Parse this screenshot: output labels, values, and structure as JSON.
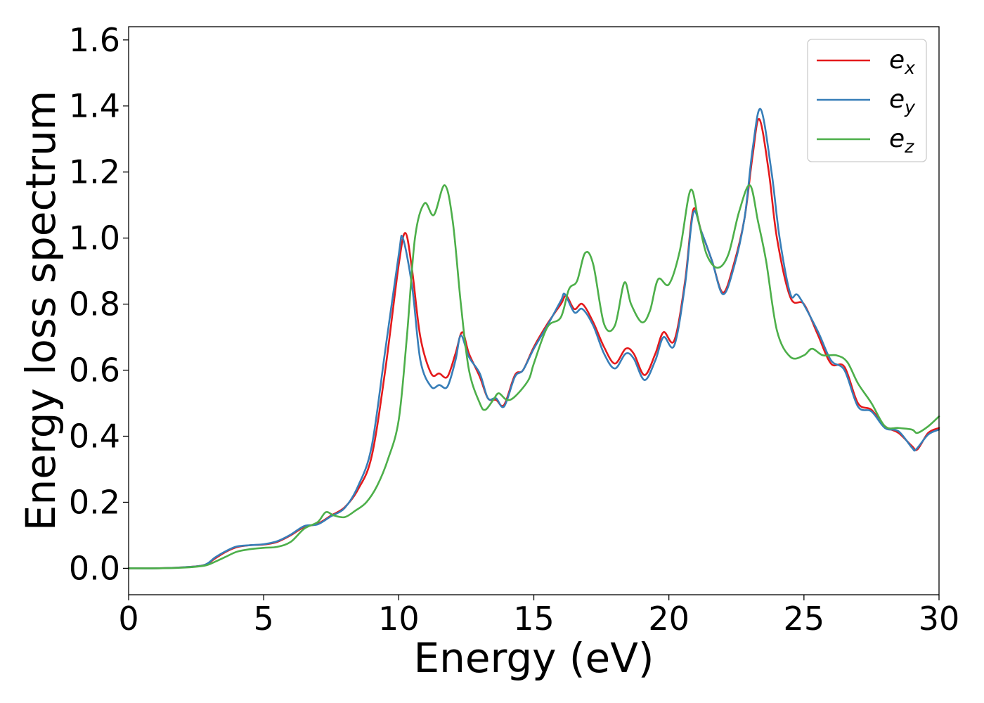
{
  "chart_data": {
    "type": "line",
    "title": "",
    "xlabel": "Energy (eV)",
    "ylabel": "Energy loss spectrum",
    "xlim": [
      0,
      30
    ],
    "ylim": [
      -0.08,
      1.64
    ],
    "xticks": [
      0,
      5,
      10,
      15,
      20,
      25,
      30
    ],
    "yticks": [
      0.0,
      0.2,
      0.4,
      0.6,
      0.8,
      1.0,
      1.2,
      1.4,
      1.6
    ],
    "grid": false,
    "legend": "top-right",
    "series": [
      {
        "name": "e_x",
        "legend_base": "e",
        "legend_sub": "x",
        "color": "#e41a1c",
        "points": [
          [
            0,
            0.0
          ],
          [
            1,
            0.0
          ],
          [
            2,
            0.003
          ],
          [
            2.8,
            0.01
          ],
          [
            3.2,
            0.03
          ],
          [
            3.6,
            0.05
          ],
          [
            4,
            0.064
          ],
          [
            4.5,
            0.07
          ],
          [
            5,
            0.072
          ],
          [
            5.5,
            0.08
          ],
          [
            6,
            0.1
          ],
          [
            6.5,
            0.125
          ],
          [
            7,
            0.135
          ],
          [
            7.5,
            0.16
          ],
          [
            8,
            0.185
          ],
          [
            8.5,
            0.24
          ],
          [
            9,
            0.34
          ],
          [
            9.5,
            0.6
          ],
          [
            10,
            0.92
          ],
          [
            10.25,
            1.015
          ],
          [
            10.5,
            0.9
          ],
          [
            10.8,
            0.7
          ],
          [
            11.2,
            0.59
          ],
          [
            11.5,
            0.59
          ],
          [
            11.8,
            0.58
          ],
          [
            12.1,
            0.65
          ],
          [
            12.35,
            0.715
          ],
          [
            12.6,
            0.65
          ],
          [
            13,
            0.58
          ],
          [
            13.3,
            0.515
          ],
          [
            13.6,
            0.51
          ],
          [
            13.9,
            0.495
          ],
          [
            14.3,
            0.585
          ],
          [
            14.6,
            0.6
          ],
          [
            15,
            0.67
          ],
          [
            15.5,
            0.74
          ],
          [
            16,
            0.8
          ],
          [
            16.2,
            0.825
          ],
          [
            16.5,
            0.785
          ],
          [
            16.8,
            0.8
          ],
          [
            17.2,
            0.745
          ],
          [
            17.6,
            0.67
          ],
          [
            18,
            0.62
          ],
          [
            18.4,
            0.665
          ],
          [
            18.7,
            0.65
          ],
          [
            19.1,
            0.585
          ],
          [
            19.5,
            0.65
          ],
          [
            19.8,
            0.715
          ],
          [
            20.2,
            0.69
          ],
          [
            20.6,
            0.87
          ],
          [
            20.9,
            1.085
          ],
          [
            21.2,
            1.02
          ],
          [
            21.6,
            0.93
          ],
          [
            22,
            0.835
          ],
          [
            22.4,
            0.92
          ],
          [
            22.8,
            1.06
          ],
          [
            23.1,
            1.25
          ],
          [
            23.35,
            1.36
          ],
          [
            23.7,
            1.2
          ],
          [
            24,
            1.0
          ],
          [
            24.5,
            0.82
          ],
          [
            25,
            0.8
          ],
          [
            25.5,
            0.71
          ],
          [
            26,
            0.62
          ],
          [
            26.5,
            0.61
          ],
          [
            27,
            0.5
          ],
          [
            27.5,
            0.48
          ],
          [
            28,
            0.43
          ],
          [
            28.5,
            0.41
          ],
          [
            29,
            0.37
          ],
          [
            29.2,
            0.36
          ],
          [
            29.6,
            0.41
          ],
          [
            30,
            0.425
          ]
        ]
      },
      {
        "name": "e_y",
        "legend_base": "e",
        "legend_sub": "y",
        "color": "#377eb8",
        "points": [
          [
            0,
            0.0
          ],
          [
            1,
            0.0
          ],
          [
            2,
            0.003
          ],
          [
            2.8,
            0.01
          ],
          [
            3.2,
            0.033
          ],
          [
            3.6,
            0.052
          ],
          [
            4,
            0.066
          ],
          [
            4.5,
            0.07
          ],
          [
            5,
            0.073
          ],
          [
            5.5,
            0.082
          ],
          [
            6,
            0.102
          ],
          [
            6.5,
            0.128
          ],
          [
            7,
            0.133
          ],
          [
            7.5,
            0.158
          ],
          [
            8,
            0.183
          ],
          [
            8.5,
            0.25
          ],
          [
            9,
            0.37
          ],
          [
            9.5,
            0.66
          ],
          [
            10,
            0.95
          ],
          [
            10.15,
            1.0
          ],
          [
            10.5,
            0.85
          ],
          [
            10.8,
            0.63
          ],
          [
            11.2,
            0.55
          ],
          [
            11.5,
            0.555
          ],
          [
            11.8,
            0.55
          ],
          [
            12.1,
            0.63
          ],
          [
            12.3,
            0.705
          ],
          [
            12.6,
            0.64
          ],
          [
            13,
            0.59
          ],
          [
            13.3,
            0.515
          ],
          [
            13.6,
            0.515
          ],
          [
            13.9,
            0.49
          ],
          [
            14.3,
            0.58
          ],
          [
            14.6,
            0.6
          ],
          [
            15,
            0.665
          ],
          [
            15.5,
            0.735
          ],
          [
            16,
            0.81
          ],
          [
            16.15,
            0.83
          ],
          [
            16.5,
            0.775
          ],
          [
            16.8,
            0.785
          ],
          [
            17.2,
            0.735
          ],
          [
            17.6,
            0.65
          ],
          [
            18,
            0.605
          ],
          [
            18.4,
            0.65
          ],
          [
            18.7,
            0.635
          ],
          [
            19.1,
            0.57
          ],
          [
            19.5,
            0.63
          ],
          [
            19.8,
            0.7
          ],
          [
            20.2,
            0.675
          ],
          [
            20.6,
            0.86
          ],
          [
            20.9,
            1.075
          ],
          [
            21.2,
            1.02
          ],
          [
            21.6,
            0.93
          ],
          [
            22,
            0.83
          ],
          [
            22.4,
            0.91
          ],
          [
            22.8,
            1.06
          ],
          [
            23.1,
            1.27
          ],
          [
            23.4,
            1.39
          ],
          [
            23.8,
            1.2
          ],
          [
            24.1,
            1.0
          ],
          [
            24.5,
            0.83
          ],
          [
            24.8,
            0.825
          ],
          [
            25.5,
            0.72
          ],
          [
            26,
            0.63
          ],
          [
            26.5,
            0.6
          ],
          [
            27,
            0.49
          ],
          [
            27.5,
            0.475
          ],
          [
            28,
            0.425
          ],
          [
            28.5,
            0.415
          ],
          [
            29,
            0.365
          ],
          [
            29.15,
            0.36
          ],
          [
            29.6,
            0.405
          ],
          [
            30,
            0.42
          ]
        ]
      },
      {
        "name": "e_z",
        "legend_base": "e",
        "legend_sub": "z",
        "color": "#4daf4a",
        "points": [
          [
            0,
            0.0
          ],
          [
            1,
            0.0
          ],
          [
            2,
            0.002
          ],
          [
            2.8,
            0.008
          ],
          [
            3.2,
            0.02
          ],
          [
            3.6,
            0.035
          ],
          [
            4,
            0.05
          ],
          [
            4.5,
            0.058
          ],
          [
            5,
            0.062
          ],
          [
            5.5,
            0.065
          ],
          [
            6,
            0.08
          ],
          [
            6.5,
            0.12
          ],
          [
            7,
            0.14
          ],
          [
            7.3,
            0.17
          ],
          [
            7.6,
            0.16
          ],
          [
            8,
            0.155
          ],
          [
            8.4,
            0.175
          ],
          [
            8.8,
            0.2
          ],
          [
            9.2,
            0.25
          ],
          [
            9.6,
            0.33
          ],
          [
            10,
            0.45
          ],
          [
            10.3,
            0.7
          ],
          [
            10.6,
            1.0
          ],
          [
            10.95,
            1.105
          ],
          [
            11.3,
            1.07
          ],
          [
            11.7,
            1.16
          ],
          [
            12,
            1.05
          ],
          [
            12.3,
            0.8
          ],
          [
            12.6,
            0.6
          ],
          [
            13,
            0.5
          ],
          [
            13.2,
            0.48
          ],
          [
            13.5,
            0.51
          ],
          [
            13.7,
            0.53
          ],
          [
            14,
            0.51
          ],
          [
            14.3,
            0.52
          ],
          [
            14.8,
            0.57
          ],
          [
            15,
            0.62
          ],
          [
            15.5,
            0.73
          ],
          [
            16,
            0.76
          ],
          [
            16.3,
            0.845
          ],
          [
            16.6,
            0.87
          ],
          [
            16.9,
            0.955
          ],
          [
            17.2,
            0.92
          ],
          [
            17.6,
            0.74
          ],
          [
            18,
            0.735
          ],
          [
            18.35,
            0.865
          ],
          [
            18.6,
            0.8
          ],
          [
            19,
            0.745
          ],
          [
            19.3,
            0.78
          ],
          [
            19.6,
            0.875
          ],
          [
            20,
            0.86
          ],
          [
            20.4,
            0.96
          ],
          [
            20.8,
            1.145
          ],
          [
            21.1,
            1.05
          ],
          [
            21.4,
            0.95
          ],
          [
            21.8,
            0.91
          ],
          [
            22.2,
            0.95
          ],
          [
            22.6,
            1.08
          ],
          [
            23,
            1.16
          ],
          [
            23.3,
            1.05
          ],
          [
            23.6,
            0.93
          ],
          [
            24,
            0.72
          ],
          [
            24.5,
            0.64
          ],
          [
            25,
            0.645
          ],
          [
            25.3,
            0.665
          ],
          [
            25.7,
            0.645
          ],
          [
            26.2,
            0.645
          ],
          [
            26.6,
            0.625
          ],
          [
            27,
            0.56
          ],
          [
            27.5,
            0.5
          ],
          [
            28,
            0.43
          ],
          [
            28.5,
            0.425
          ],
          [
            29,
            0.42
          ],
          [
            29.2,
            0.41
          ],
          [
            29.6,
            0.43
          ],
          [
            30,
            0.46
          ]
        ]
      }
    ]
  }
}
